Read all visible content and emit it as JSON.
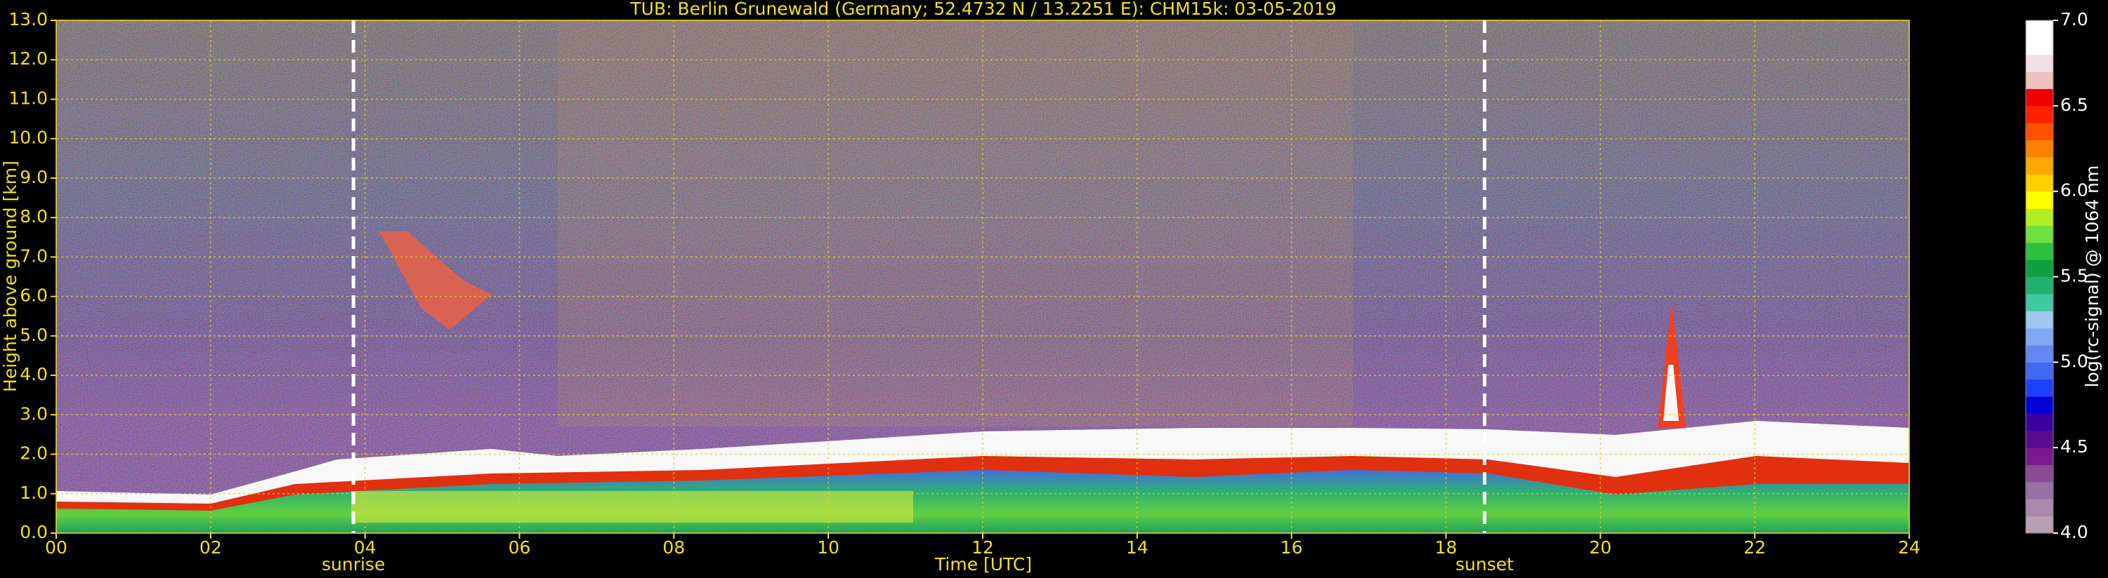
{
  "chart_data": {
    "type": "heatmap",
    "title": "TUB: Berlin Grunewald (Germany; 52.4732 N / 13.2251 E):    CHM15k: 03-05-2019",
    "xlabel": "Time [UTC]",
    "ylabel": "Height above ground [km]",
    "xlim": [
      0,
      24
    ],
    "xticks": [
      {
        "value": 0,
        "label": "00"
      },
      {
        "value": 2,
        "label": "02"
      },
      {
        "value": 4,
        "label": "04"
      },
      {
        "value": 6,
        "label": "06"
      },
      {
        "value": 8,
        "label": "08"
      },
      10,
      12,
      14,
      16,
      18,
      20,
      22,
      24
    ],
    "ylim": [
      0,
      13
    ],
    "yticks": [
      {
        "value": 0,
        "label": "0.0"
      },
      {
        "value": 1,
        "label": "1.0"
      },
      {
        "value": 2,
        "label": "2.0"
      },
      {
        "value": 3,
        "label": "3.0"
      },
      {
        "value": 4,
        "label": "4.0"
      },
      {
        "value": 5,
        "label": "5.0"
      },
      {
        "value": 6,
        "label": "6.0"
      },
      {
        "value": 7,
        "label": "7.0"
      },
      {
        "value": 8,
        "label": "8.0"
      },
      {
        "value": 9,
        "label": "9.0"
      },
      {
        "value": 10,
        "label": "10.0"
      },
      {
        "value": 11,
        "label": "11.0"
      },
      {
        "value": 12,
        "label": "12.0"
      },
      {
        "value": 13,
        "label": "13.0"
      }
    ],
    "grid": true,
    "annotations": [
      {
        "x": 3.85,
        "label": "sunrise"
      },
      {
        "x": 18.5,
        "label": "sunset"
      }
    ],
    "colorbar": {
      "label": "log(rc-signal) @ 1064 nm",
      "lim": [
        4,
        7
      ],
      "ticks": [
        {
          "value": 4,
          "label": "4.0"
        },
        {
          "value": 4.5,
          "label": "4.5"
        },
        {
          "value": 5,
          "label": "5.0"
        },
        {
          "value": 5.5,
          "label": "5.5"
        },
        {
          "value": 6,
          "label": "6.0"
        },
        {
          "value": 6.5,
          "label": "6.5"
        },
        {
          "value": 7,
          "label": "7.0"
        }
      ],
      "colors": [
        "#b8a0b4",
        "#a888ac",
        "#9870a4",
        "#8a4a96",
        "#7a1a8c",
        "#5a0a8c",
        "#3c00a0",
        "#0000d8",
        "#1e40ff",
        "#4068f0",
        "#6088f0",
        "#80a8f0",
        "#a0c8f0",
        "#40c8a0",
        "#20b070",
        "#10a040",
        "#30c040",
        "#70e040",
        "#b0f020",
        "#ffff00",
        "#ffd000",
        "#ffa800",
        "#ff8000",
        "#ff5000",
        "#ff2000",
        "#f00000",
        "#f0c0c0",
        "#f0e0e4",
        "#ffffff",
        "#ffffff"
      ]
    }
  }
}
